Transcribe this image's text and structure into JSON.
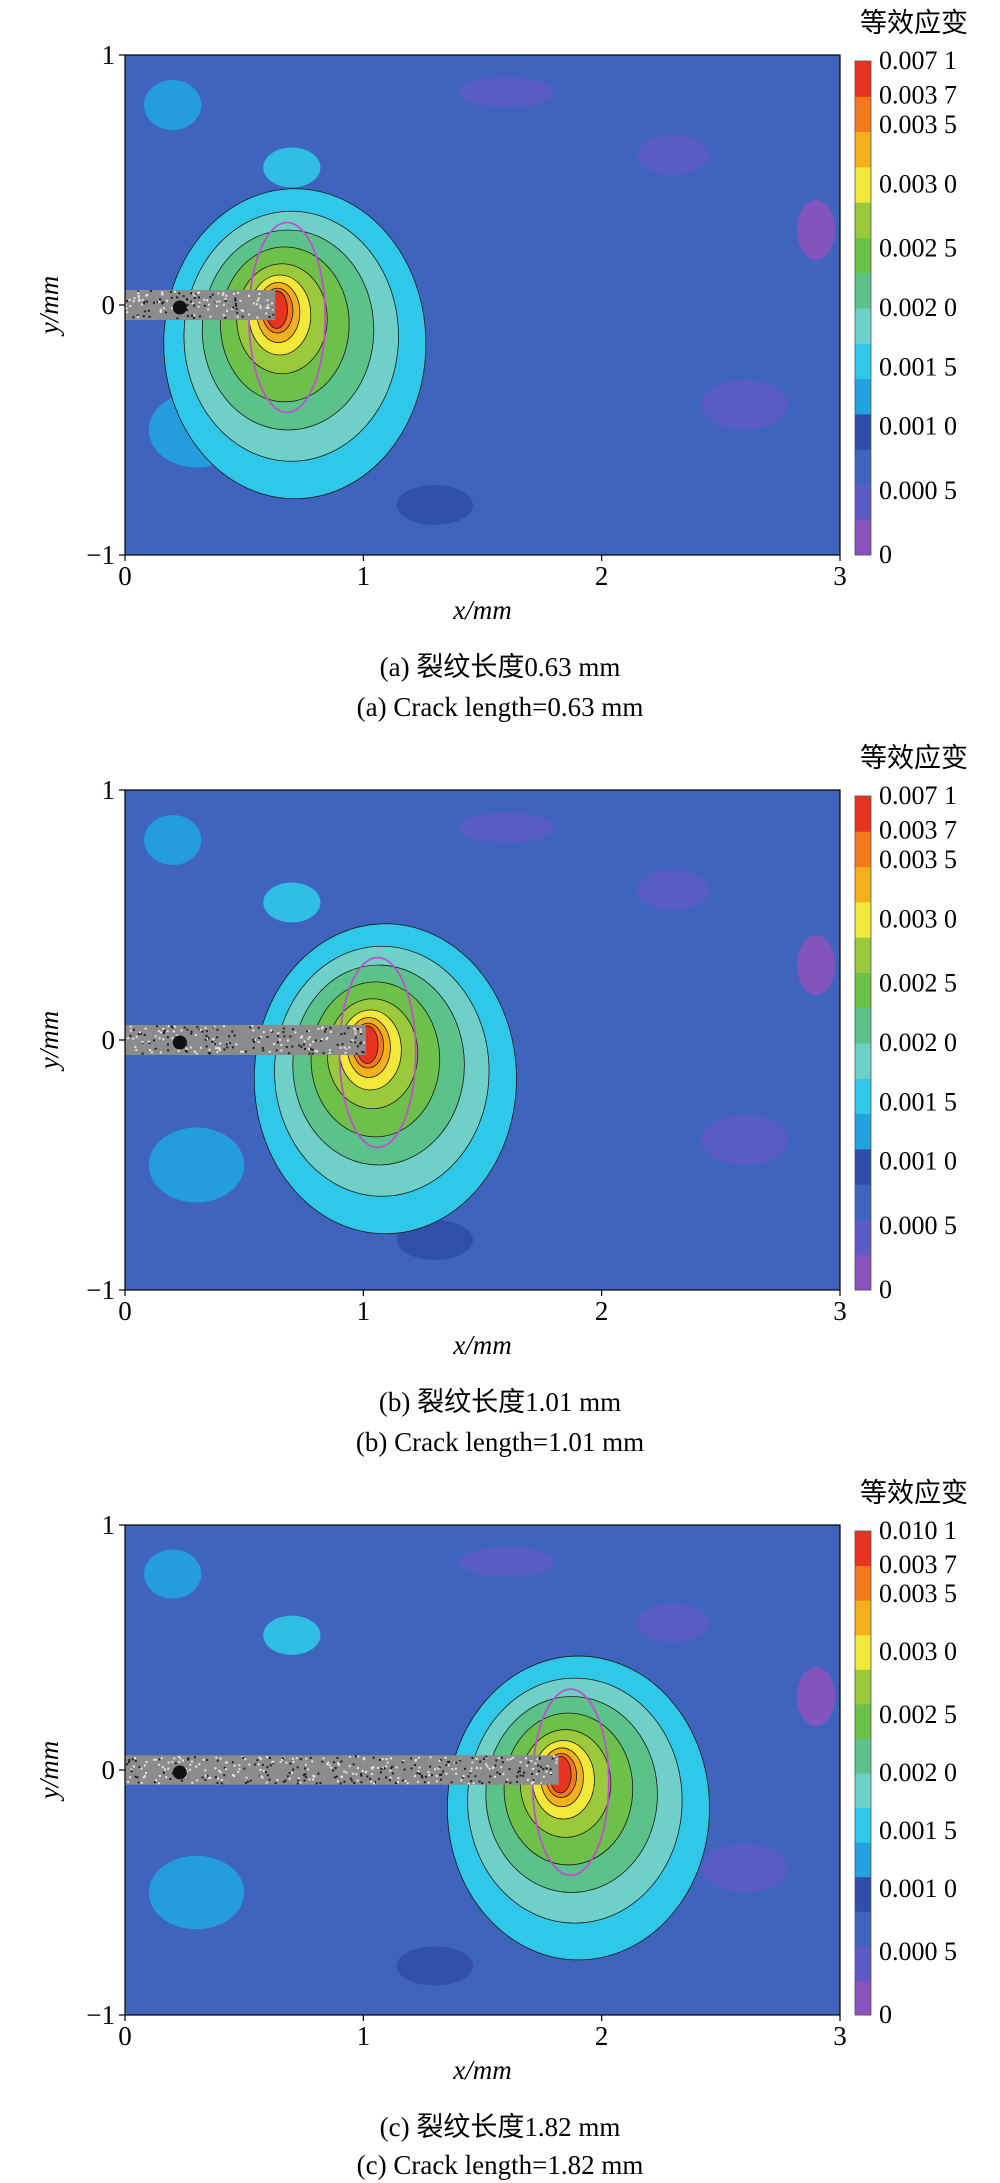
{
  "colorbar": {
    "title": "等效应变",
    "colors": [
      "#8a52bd",
      "#5c5ac4",
      "#3f64bd",
      "#2f4ea8",
      "#22a3e0",
      "#2fc8e8",
      "#6fd0c8",
      "#5bc28a",
      "#6dc04a",
      "#9bc93c",
      "#f1e83a",
      "#f2b01d",
      "#f37a1c",
      "#e83320"
    ]
  },
  "chart_data": [
    {
      "type": "heatmap",
      "title": "",
      "xlabel": "x/mm",
      "ylabel": "y/mm",
      "xlim": [
        0,
        3
      ],
      "ylim": [
        -1,
        1
      ],
      "xticks": [
        "0",
        "1",
        "2",
        "3"
      ],
      "yticks": [
        "1",
        "0",
        "−1"
      ],
      "colorbar_ticks": [
        "0.007 1",
        "0.003 7",
        "0.003 5",
        "0.003 0",
        "0.002 5",
        "0.002 0",
        "0.001 5",
        "0.001 0",
        "0.000 5",
        "0"
      ],
      "colorbar_max": 0.0071,
      "crack_length_mm": 0.63,
      "crack_tip": {
        "x": 0.63,
        "y": 0
      },
      "caption_cn": "(a) 裂纹长度0.63 mm",
      "caption_en": "(a) Crack length=0.63 mm"
    },
    {
      "type": "heatmap",
      "title": "",
      "xlabel": "x/mm",
      "ylabel": "y/mm",
      "xlim": [
        0,
        3
      ],
      "ylim": [
        -1,
        1
      ],
      "xticks": [
        "0",
        "1",
        "2",
        "3"
      ],
      "yticks": [
        "1",
        "0",
        "−1"
      ],
      "colorbar_ticks": [
        "0.007 1",
        "0.003 7",
        "0.003 5",
        "0.003 0",
        "0.002 5",
        "0.002 0",
        "0.001 5",
        "0.001 0",
        "0.000 5",
        "0"
      ],
      "colorbar_max": 0.0071,
      "crack_length_mm": 1.01,
      "crack_tip": {
        "x": 1.01,
        "y": 0
      },
      "caption_cn": "(b) 裂纹长度1.01 mm",
      "caption_en": "(b) Crack length=1.01 mm"
    },
    {
      "type": "heatmap",
      "title": "",
      "xlabel": "x/mm",
      "ylabel": "y/mm",
      "xlim": [
        0,
        3
      ],
      "ylim": [
        -1,
        1
      ],
      "xticks": [
        "0",
        "1",
        "2",
        "3"
      ],
      "yticks": [
        "1",
        "0",
        "−1"
      ],
      "colorbar_ticks": [
        "0.010 1",
        "0.003 7",
        "0.003 5",
        "0.003 0",
        "0.002 5",
        "0.002 0",
        "0.001 5",
        "0.001 0",
        "0.000 5",
        "0"
      ],
      "colorbar_max": 0.0101,
      "crack_length_mm": 1.82,
      "crack_tip": {
        "x": 1.82,
        "y": 0
      },
      "caption_cn": "(c) 裂纹长度1.82 mm",
      "caption_en": "(c) Crack length=1.82 mm"
    }
  ]
}
